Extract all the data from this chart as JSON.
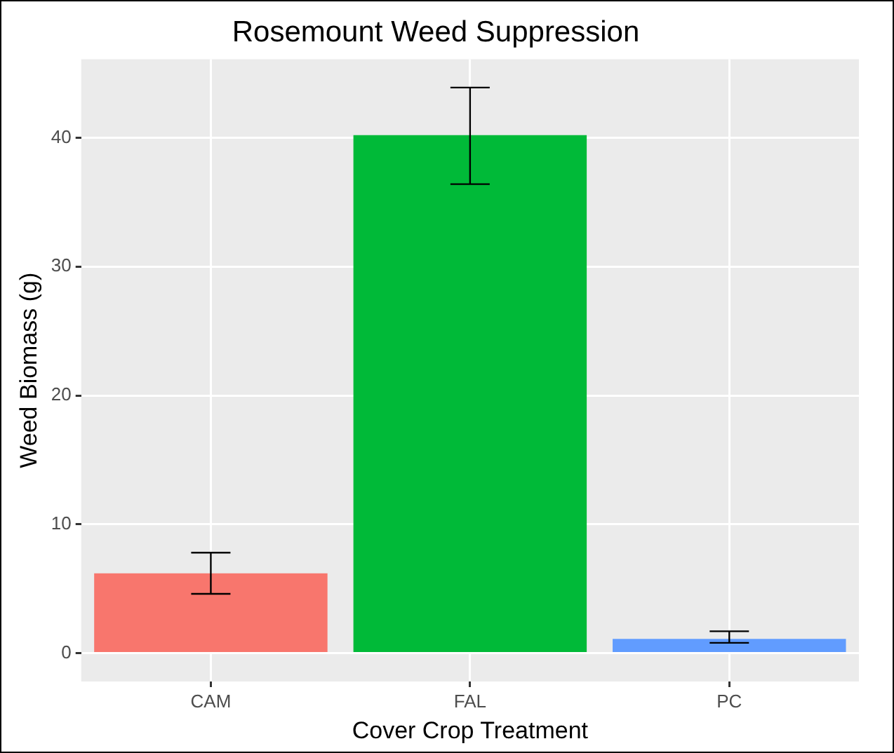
{
  "chart_data": {
    "type": "bar",
    "title": "Rosemount Weed Suppression",
    "xlabel": "Cover Crop Treatment",
    "ylabel": "Weed Biomass (g)",
    "categories": [
      "CAM",
      "FAL",
      "PC"
    ],
    "values": [
      6.2,
      40.2,
      1.1
    ],
    "colors": [
      "#f8766d",
      "#00ba38",
      "#619cff"
    ],
    "errors": [
      [
        4.6,
        7.8
      ],
      [
        36.4,
        43.9
      ],
      [
        0.8,
        1.7
      ]
    ],
    "ylim": [
      -2.2,
      46.1
    ],
    "yticks": [
      0,
      10,
      20,
      30,
      40
    ],
    "grid": true
  }
}
